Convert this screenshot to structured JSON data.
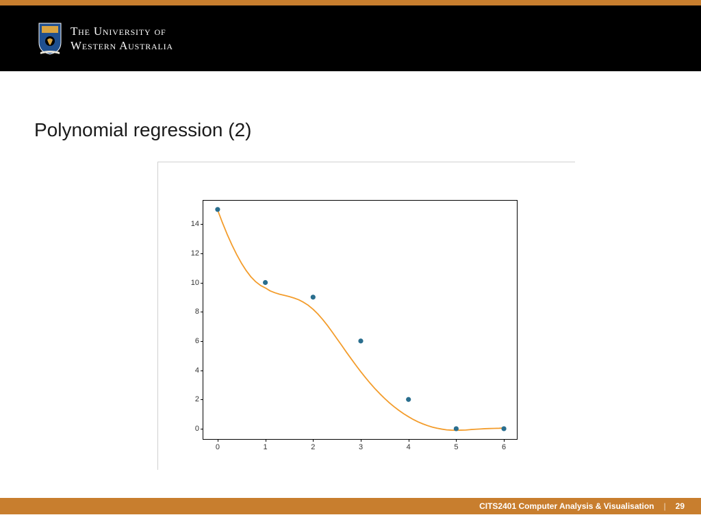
{
  "header": {
    "uni_line1": "The University of",
    "uni_line2": "Western Australia",
    "top_bar_color": "#c87e2e",
    "header_bg": "#000000",
    "crest_blue": "#1f4f8f",
    "crest_gold": "#d9a441"
  },
  "slide": {
    "title": "Polynomial regression (2)"
  },
  "chart": {
    "type": "line+scatter",
    "xlim": [
      -0.3,
      6.3
    ],
    "ylim": [
      -0.8,
      15.6
    ],
    "xticks": [
      0,
      1,
      2,
      3,
      4,
      5,
      6
    ],
    "yticks": [
      0,
      2,
      4,
      6,
      8,
      10,
      12,
      14
    ],
    "line_color": "#f39c2b",
    "line_width": 1.8,
    "marker_color": "#2a6e8e",
    "marker_edge": "#2a6e8e",
    "marker_size": 3.2,
    "background_color": "#ffffff",
    "axis_color": "#000000",
    "tick_fontsize": 11,
    "tick_color": "#333333",
    "scatter_x": [
      0,
      1,
      2,
      3,
      4,
      5,
      6
    ],
    "scatter_y": [
      15,
      10,
      9,
      6,
      2,
      0,
      0
    ],
    "curve_x": [
      0,
      0.1,
      0.2,
      0.3,
      0.4,
      0.5,
      0.6,
      0.7,
      0.8,
      0.9,
      1,
      1.1,
      1.2,
      1.3,
      1.4,
      1.5,
      1.6,
      1.7,
      1.8,
      1.9,
      2,
      2.1,
      2.2,
      2.3,
      2.4,
      2.5,
      2.6,
      2.7,
      2.8,
      2.9,
      3,
      3.1,
      3.2,
      3.3,
      3.4,
      3.5,
      3.6,
      3.7,
      3.8,
      3.9,
      4,
      4.1,
      4.2,
      4.3,
      4.4,
      4.5,
      4.6,
      4.7,
      4.8,
      4.9,
      5,
      5.1,
      5.2,
      5.3,
      5.4,
      5.5,
      5.6,
      5.7,
      5.8,
      5.9,
      6
    ],
    "curve_y": [
      14.96,
      14.1,
      13.3,
      12.57,
      11.91,
      11.32,
      10.81,
      10.38,
      10.05,
      9.8,
      9.63,
      9.43,
      9.3,
      9.2,
      9.12,
      9.04,
      8.94,
      8.82,
      8.65,
      8.44,
      8.17,
      7.85,
      7.48,
      7.07,
      6.62,
      6.16,
      5.7,
      5.23,
      4.78,
      4.33,
      3.9,
      3.49,
      3.1,
      2.73,
      2.39,
      2.07,
      1.77,
      1.5,
      1.25,
      1.02,
      0.82,
      0.63,
      0.47,
      0.33,
      0.21,
      0.11,
      0.03,
      -0.03,
      -0.08,
      -0.1,
      -0.11,
      -0.1,
      -0.09,
      -0.06,
      -0.04,
      -0.02,
      0.0,
      0.01,
      0.02,
      0.03,
      0.05
    ]
  },
  "footer": {
    "course": "CITS2401 Computer Analysis & Visualisation",
    "page": "29",
    "bg_color": "#c87e2e"
  }
}
